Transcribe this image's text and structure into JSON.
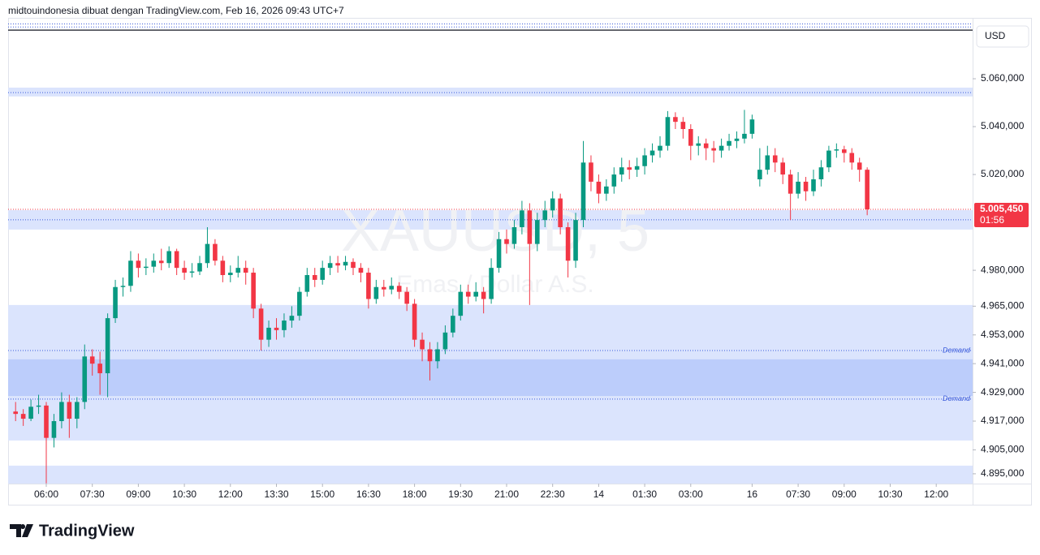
{
  "header": "midtouindonesia dibuat dengan TradingView.com, Feb 16, 2026 09:43 UTC+7",
  "brand": "TradingView",
  "chart_data": {
    "type": "candlestick",
    "watermark": "XAUUSD, 5",
    "watermark_subtitle": "Emas / Dollar A.S.",
    "currency": "USD",
    "up_color": "#089981",
    "down_color": "#f23645",
    "ylim": [
      4890.9,
      5083.4
    ],
    "yticks": [
      {
        "value": 5060,
        "label": "5.060,000"
      },
      {
        "value": 5040,
        "label": "5.040,000"
      },
      {
        "value": 5020,
        "label": "5.020,000"
      },
      {
        "value": 4980,
        "label": "4.980,000"
      },
      {
        "value": 4965,
        "label": "4.965,000"
      },
      {
        "value": 4953,
        "label": "4.953,000"
      },
      {
        "value": 4941,
        "label": "4.941,000"
      },
      {
        "value": 4929,
        "label": "4.929,000"
      },
      {
        "value": 4917,
        "label": "4.917,000"
      },
      {
        "value": 4905,
        "label": "4.905,000"
      },
      {
        "value": 4895,
        "label": "4.895,000"
      }
    ],
    "last_price": {
      "value": 5005.45,
      "label": "5.005,450",
      "countdown": "01:56"
    },
    "zones": [
      {
        "from": 5056.3,
        "to": 5052.6,
        "color": "#dbe4fd"
      },
      {
        "from": 5005.1,
        "to": 4997.0,
        "color": "#dbe4fd"
      },
      {
        "from": 4965.5,
        "to": 4908.9,
        "color": "#dbe4fd"
      },
      {
        "from": 4942.8,
        "to": 4927.5,
        "color": "#bccdfb"
      },
      {
        "from": 4898.4,
        "to": 4890.9,
        "color": "#dbe4fd"
      }
    ],
    "levels": [
      {
        "value": 5082.9,
        "style": "dotted",
        "color": "#3b5bdb"
      },
      {
        "value": 5081.6,
        "style": "dotted",
        "color": "#3b5bdb"
      },
      {
        "value": 5080.3,
        "style": "solid",
        "color": "#131722"
      },
      {
        "value": 5054.2,
        "style": "dotted",
        "color": "#3b5bdb"
      },
      {
        "value": 5001.1,
        "style": "dotted",
        "color": "#3b5bdb"
      },
      {
        "value": 4946.5,
        "style": "dotted",
        "color": "#3b5bdb",
        "label": "Demand"
      },
      {
        "value": 4926.2,
        "style": "dotted",
        "color": "#3b5bdb",
        "label": "Demand"
      }
    ],
    "x": [
      null,
      null,
      null,
      null,
      "06:00",
      null,
      null,
      null,
      null,
      null,
      "07:30",
      null,
      null,
      null,
      null,
      null,
      "09:00",
      null,
      null,
      null,
      null,
      null,
      "10:30",
      null,
      null,
      null,
      null,
      null,
      "12:00",
      null,
      null,
      null,
      null,
      null,
      "13:30",
      null,
      null,
      null,
      null,
      null,
      "15:00",
      null,
      null,
      null,
      null,
      null,
      "16:30",
      null,
      null,
      null,
      null,
      null,
      "18:00",
      null,
      null,
      null,
      null,
      null,
      "19:30",
      null,
      null,
      null,
      null,
      null,
      "21:00",
      null,
      null,
      null,
      null,
      null,
      "22:30",
      null,
      null,
      null,
      null,
      null,
      "14",
      null,
      null,
      null,
      null,
      null,
      "01:30",
      null,
      null,
      null,
      null,
      null,
      "03:00",
      null,
      null,
      null,
      null,
      null,
      null,
      null,
      "16",
      null,
      null,
      null,
      null,
      null,
      "07:30",
      null,
      null,
      null,
      null,
      null,
      "09:00",
      null,
      null,
      null,
      null,
      null,
      "10:30",
      null,
      null,
      null,
      null,
      null,
      "12:00"
    ],
    "candles": [
      [
        4921,
        4925,
        4917,
        4920
      ],
      [
        4920,
        4922,
        4915,
        4918
      ],
      [
        4918,
        4926,
        4917,
        4923
      ],
      [
        4923,
        4928,
        4920,
        4923.5
      ],
      [
        4923.5,
        4925,
        4891,
        4910
      ],
      [
        4910,
        4920,
        4906,
        4917
      ],
      [
        4917,
        4929,
        4914,
        4925
      ],
      [
        4925,
        4928,
        4910,
        4918
      ],
      [
        4918,
        4927,
        4914,
        4925
      ],
      [
        4925,
        4949,
        4922,
        4944
      ],
      [
        4944,
        4947,
        4936,
        4941
      ],
      [
        4941,
        4946,
        4928,
        4937
      ],
      [
        4937,
        4962,
        4927,
        4960
      ],
      [
        4960,
        4976,
        4958,
        4973
      ],
      [
        4973,
        4977,
        4969,
        4973.5
      ],
      [
        4973.5,
        4988,
        4971,
        4984
      ],
      [
        4984,
        4987,
        4977,
        4981
      ],
      [
        4981,
        4985,
        4978,
        4981.5
      ],
      [
        4981.5,
        4987,
        4979,
        4984
      ],
      [
        4984,
        4989,
        4980,
        4983
      ],
      [
        4983,
        4990,
        4981,
        4988
      ],
      [
        4988,
        4989,
        4978,
        4981
      ],
      [
        4981,
        4984,
        4976,
        4979
      ],
      [
        4979,
        4983,
        4977,
        4979.5
      ],
      [
        4979.5,
        4986,
        4978,
        4983
      ],
      [
        4983,
        4998,
        4981,
        4991
      ],
      [
        4991,
        4993,
        4982,
        4984
      ],
      [
        4984,
        4986,
        4975,
        4978
      ],
      [
        4978,
        4982,
        4975,
        4979
      ],
      [
        4979,
        4986,
        4977,
        4981
      ],
      [
        4981,
        4984,
        4974,
        4979
      ],
      [
        4979,
        4981,
        4960,
        4964
      ],
      [
        4964,
        4966,
        4946.5,
        4951
      ],
      [
        4951,
        4959,
        4948,
        4956
      ],
      [
        4956,
        4960,
        4951,
        4955
      ],
      [
        4955,
        4962,
        4952,
        4959
      ],
      [
        4959,
        4965,
        4956,
        4961
      ],
      [
        4961,
        4973,
        4959,
        4971
      ],
      [
        4971,
        4981,
        4969,
        4978
      ],
      [
        4978,
        4981,
        4973,
        4976
      ],
      [
        4976,
        4984,
        4974,
        4981
      ],
      [
        4981,
        4986,
        4978,
        4983
      ],
      [
        4983,
        4986,
        4979,
        4982
      ],
      [
        4982,
        4986,
        4980,
        4983.5
      ],
      [
        4983.5,
        4985,
        4978,
        4981
      ],
      [
        4981,
        4983,
        4975,
        4979
      ],
      [
        4979,
        4981,
        4964,
        4968
      ],
      [
        4968,
        4976,
        4966,
        4973
      ],
      [
        4973,
        4976,
        4969,
        4972
      ],
      [
        4972,
        4977,
        4970,
        4973.5
      ],
      [
        4973.5,
        4975,
        4968,
        4971
      ],
      [
        4971,
        4973,
        4963,
        4966
      ],
      [
        4966,
        4968,
        4948,
        4951
      ],
      [
        4951,
        4954,
        4942,
        4947
      ],
      [
        4947,
        4950,
        4934,
        4942
      ],
      [
        4942,
        4950,
        4939,
        4947
      ],
      [
        4947,
        4957,
        4945,
        4954
      ],
      [
        4954,
        4964,
        4952,
        4961
      ],
      [
        4961,
        4974,
        4959,
        4971
      ],
      [
        4971,
        4974,
        4966,
        4969
      ],
      [
        4969,
        4975,
        4967,
        4971
      ],
      [
        4971,
        4973,
        4962,
        4968
      ],
      [
        4968,
        4985,
        4966,
        4981
      ],
      [
        4981,
        4996,
        4979,
        4993
      ],
      [
        4993,
        4997,
        4987,
        4991
      ],
      [
        4991,
        5001,
        4989,
        4998
      ],
      [
        4998,
        5009,
        4995,
        5005
      ],
      [
        5005,
        5008,
        4965.5,
        4991
      ],
      [
        4991,
        5004,
        4988,
        5001
      ],
      [
        5001,
        5009,
        4998,
        5005
      ],
      [
        5005,
        5013,
        5002,
        5010
      ],
      [
        5010,
        5012,
        4995,
        4998
      ],
      [
        4998,
        5000,
        4977,
        4984
      ],
      [
        4984,
        5004,
        4981,
        5001
      ],
      [
        5001,
        5034,
        4998,
        5025
      ],
      [
        5025,
        5028,
        5013,
        5017
      ],
      [
        5017,
        5020,
        5008,
        5012
      ],
      [
        5012,
        5018,
        5009,
        5015
      ],
      [
        5015,
        5023,
        5012,
        5020
      ],
      [
        5020,
        5027,
        5017,
        5023
      ],
      [
        5023,
        5026,
        5018,
        5022
      ],
      [
        5022,
        5027,
        5019,
        5023.5
      ],
      [
        5023.5,
        5031,
        5020,
        5028
      ],
      [
        5028,
        5033,
        5025,
        5030
      ],
      [
        5030,
        5036,
        5027,
        5032
      ],
      [
        5032,
        5046.5,
        5030,
        5044
      ],
      [
        5044,
        5046,
        5039,
        5042
      ],
      [
        5042,
        5044,
        5035,
        5039
      ],
      [
        5039,
        5041,
        5026,
        5032
      ],
      [
        5032,
        5036,
        5028,
        5033
      ],
      [
        5033,
        5035,
        5026,
        5031
      ],
      [
        5031,
        5034,
        5025,
        5030
      ],
      [
        5030,
        5035,
        5027,
        5032
      ],
      [
        5032,
        5037,
        5030,
        5034
      ],
      [
        5034,
        5038,
        5031,
        5035
      ],
      [
        5035,
        5047,
        5033,
        5037
      ],
      [
        5037,
        5045,
        5035,
        5043
      ],
      [
        5018,
        5031,
        5015,
        5022
      ],
      [
        5022,
        5032,
        5020,
        5028
      ],
      [
        5028,
        5031,
        5021,
        5025
      ],
      [
        5025,
        5027,
        5016,
        5020
      ],
      [
        5020,
        5022,
        5001,
        5012
      ],
      [
        5012,
        5021,
        5010,
        5017
      ],
      [
        5017,
        5019,
        5009,
        5013
      ],
      [
        5013,
        5022,
        5011,
        5018
      ],
      [
        5018,
        5026,
        5015,
        5023
      ],
      [
        5023,
        5032,
        5021,
        5030
      ],
      [
        5030,
        5033,
        5027,
        5030.5
      ],
      [
        5030.5,
        5032,
        5025,
        5029
      ],
      [
        5029,
        5031,
        5022,
        5025
      ],
      [
        5025,
        5027,
        5017,
        5022
      ],
      [
        5022,
        5023,
        5003,
        5005.45
      ],
      null,
      null,
      null,
      null,
      null,
      null,
      null,
      null,
      null
    ]
  }
}
